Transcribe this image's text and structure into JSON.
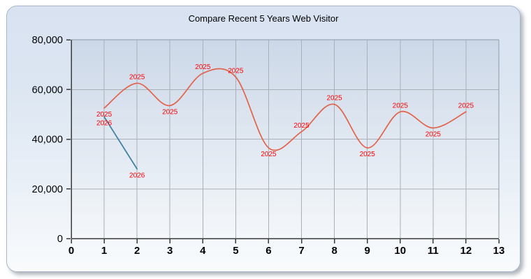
{
  "window": {
    "title": "Compare Recent 5 Years Web Visitor"
  },
  "chart_data": {
    "type": "line",
    "title": "Compare Recent 5 Years Web Visitor",
    "xlabel": "",
    "ylabel": "",
    "xlim": [
      0,
      13
    ],
    "ylim": [
      0,
      80000
    ],
    "x_ticks": [
      0,
      1,
      2,
      3,
      4,
      5,
      6,
      7,
      8,
      9,
      10,
      11,
      12,
      13
    ],
    "y_ticks": [
      0,
      20000,
      40000,
      60000,
      80000
    ],
    "y_tick_labels": [
      "0",
      "20,000",
      "40,000",
      "60,000",
      "80,000"
    ],
    "grid": true,
    "legend": "none",
    "series": [
      {
        "name": "2025",
        "color": "#e2624a",
        "smooth": true,
        "x": [
          1,
          2,
          3,
          4,
          5,
          6,
          7,
          8,
          9,
          10,
          11,
          12
        ],
        "values": [
          52500,
          62500,
          53500,
          66500,
          65000,
          36500,
          43000,
          54000,
          36500,
          51000,
          44500,
          51000
        ],
        "label_pos": [
          "below",
          "above",
          "below",
          "above",
          "above",
          "below",
          "above",
          "above",
          "below",
          "above",
          "below",
          "above"
        ]
      },
      {
        "name": "2026",
        "color": "#3d7ea3",
        "smooth": false,
        "x": [
          1,
          2
        ],
        "values": [
          49000,
          28000
        ],
        "label_pos": [
          "below",
          "below"
        ]
      }
    ],
    "colors": {
      "point_label": "#ff0000",
      "grid": "#a9b0b7",
      "axis": "#3a3a3a",
      "plot_border": "#8d99a6",
      "tick_text": "#000000"
    }
  }
}
